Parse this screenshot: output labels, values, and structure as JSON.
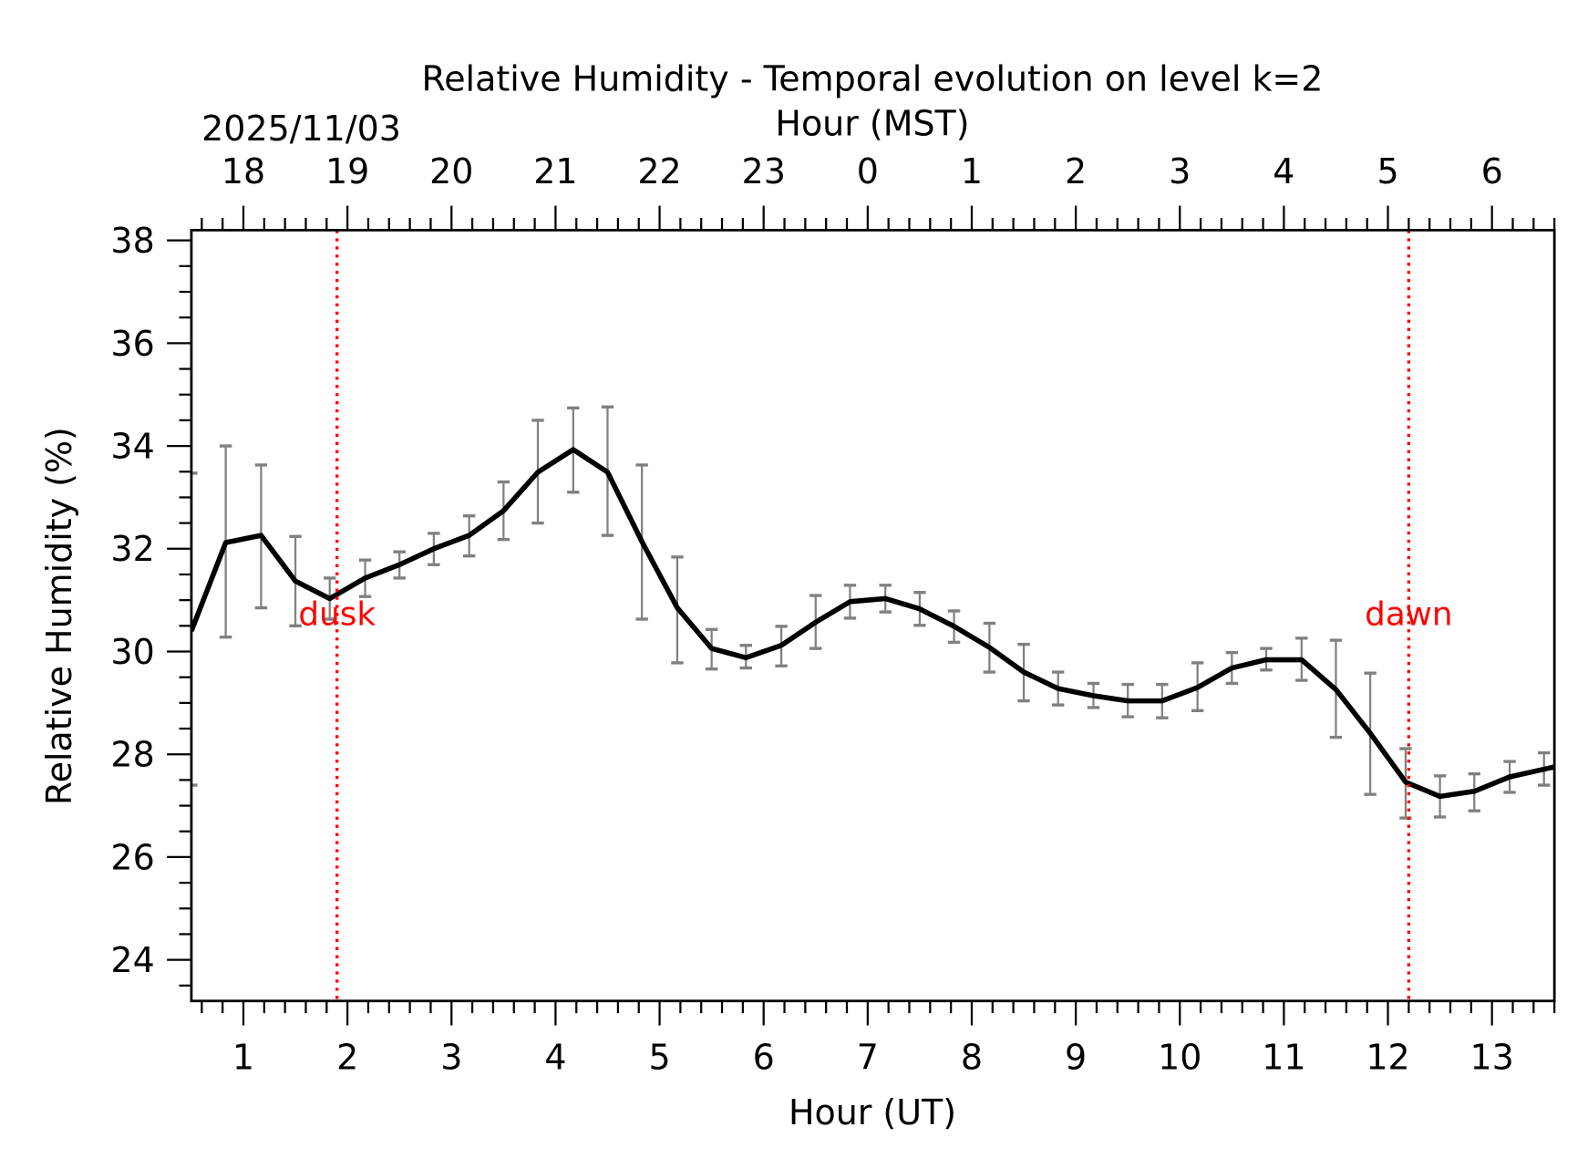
{
  "chart_data": {
    "type": "line",
    "title": "Relative Humidity - Temporal evolution on level k=2",
    "date_label": "2025/11/03",
    "xlabel": "Hour (UT)",
    "x2label": "Hour (MST)",
    "ylabel": "Relative Humidity (%)",
    "xlim": [
      0.5,
      13.6
    ],
    "ylim": [
      23.2,
      38.2
    ],
    "x_ticks": [
      1,
      2,
      3,
      4,
      5,
      6,
      7,
      8,
      9,
      10,
      11,
      12,
      13
    ],
    "x_tick_labels": [
      "1",
      "2",
      "3",
      "4",
      "5",
      "6",
      "7",
      "8",
      "9",
      "10",
      "11",
      "12",
      "13"
    ],
    "x2_tick_labels": [
      "18",
      "19",
      "20",
      "21",
      "22",
      "23",
      "0",
      "1",
      "2",
      "3",
      "4",
      "5",
      "6"
    ],
    "y_ticks": [
      24,
      26,
      28,
      30,
      32,
      34,
      36,
      38
    ],
    "y_tick_labels": [
      "24",
      "26",
      "28",
      "30",
      "32",
      "34",
      "36",
      "38"
    ],
    "grid": false,
    "line_color": "#000000",
    "errorbar_color": "#808080",
    "marker_color": "#ff0000",
    "x": [
      0.5,
      0.83,
      1.17,
      1.5,
      1.83,
      2.17,
      2.5,
      2.83,
      3.17,
      3.5,
      3.83,
      4.17,
      4.5,
      4.83,
      5.17,
      5.5,
      5.83,
      6.17,
      6.5,
      6.83,
      7.17,
      7.5,
      7.83,
      8.17,
      8.5,
      8.83,
      9.17,
      9.5,
      9.83,
      10.17,
      10.5,
      10.83,
      11.17,
      11.5,
      11.83,
      12.17,
      12.5,
      12.83,
      13.17,
      13.5
    ],
    "y": [
      30.4,
      32.12,
      32.26,
      31.37,
      31.03,
      31.43,
      31.69,
      32.0,
      32.26,
      32.74,
      33.49,
      33.93,
      33.49,
      32.14,
      30.85,
      30.06,
      29.88,
      30.12,
      30.57,
      30.97,
      31.03,
      30.83,
      30.49,
      30.08,
      29.6,
      29.28,
      29.14,
      29.04,
      29.04,
      29.3,
      29.68,
      29.84,
      29.84,
      29.26,
      28.41,
      27.46,
      27.18,
      27.28,
      27.56,
      27.71
    ],
    "y_upper": [
      33.47,
      34.0,
      33.63,
      32.24,
      31.43,
      31.78,
      31.94,
      32.3,
      32.64,
      33.3,
      34.5,
      34.74,
      34.76,
      33.63,
      31.84,
      30.43,
      30.12,
      30.49,
      31.09,
      31.29,
      31.29,
      31.15,
      30.79,
      30.55,
      30.14,
      29.6,
      29.38,
      29.36,
      29.36,
      29.78,
      29.98,
      30.06,
      30.26,
      30.22,
      29.58,
      28.11,
      27.58,
      27.62,
      27.86,
      28.03
    ],
    "y_lower": [
      27.4,
      30.28,
      30.85,
      30.5,
      30.63,
      31.07,
      31.43,
      31.69,
      31.86,
      32.18,
      32.5,
      33.1,
      32.26,
      30.63,
      29.78,
      29.66,
      29.68,
      29.72,
      30.06,
      30.65,
      30.77,
      30.51,
      30.18,
      29.6,
      29.04,
      28.96,
      28.91,
      28.73,
      28.71,
      28.85,
      29.38,
      29.64,
      29.44,
      28.33,
      27.22,
      26.76,
      26.78,
      26.9,
      27.26,
      27.4
    ],
    "annotations": [
      {
        "label": "dusk",
        "x": 1.9
      },
      {
        "label": "dawn",
        "x": 12.2
      }
    ]
  }
}
